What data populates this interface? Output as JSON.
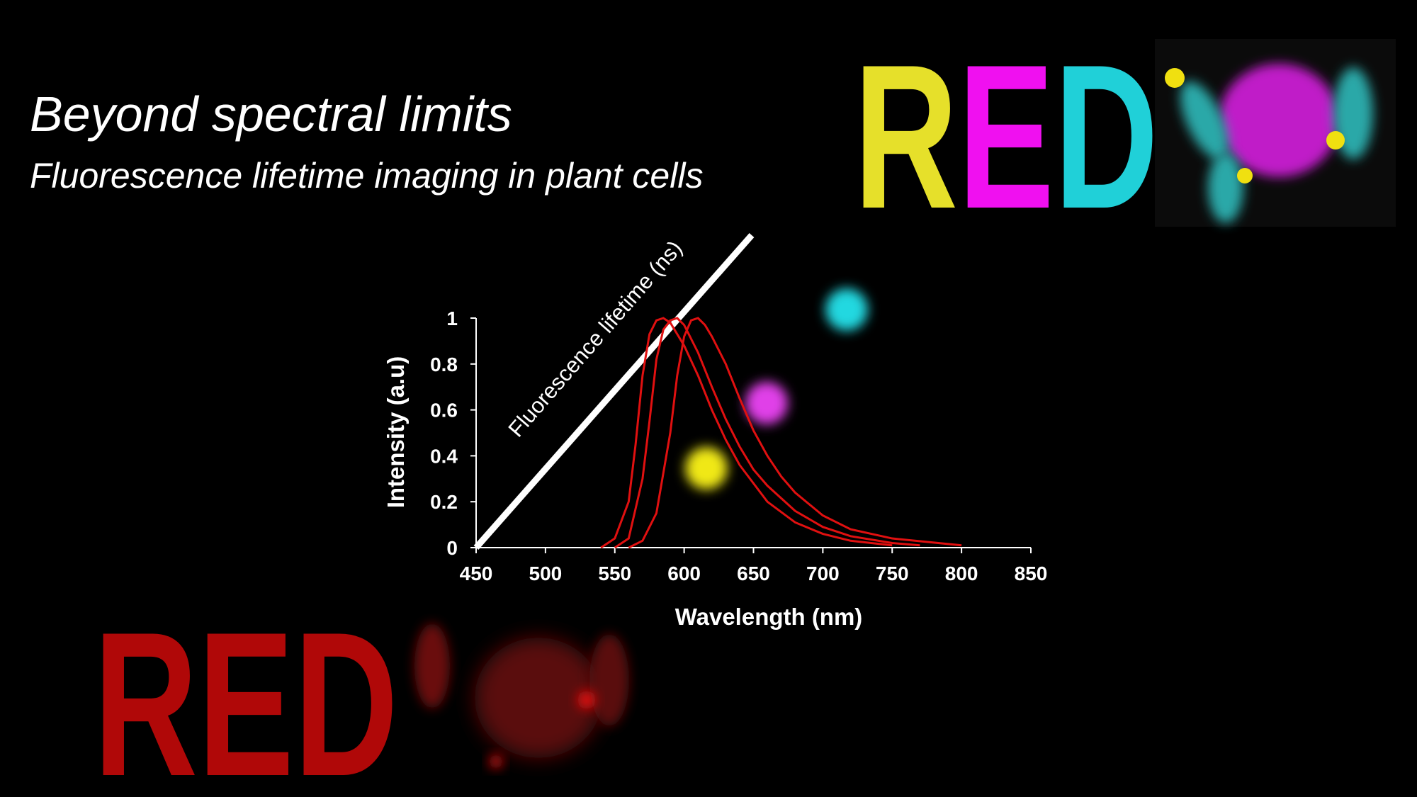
{
  "header": {
    "title": "Beyond spectral limits",
    "subtitle": "Fluorescence lifetime imaging in plant cells"
  },
  "logo_top": [
    "R",
    "E",
    "D"
  ],
  "logo_bottom": "RED",
  "chart_data": {
    "type": "line",
    "xlabel": "Wavelength (nm)",
    "ylabel": "Intensity (a.u)",
    "annotation": "Fluorescence lifetime (ns)",
    "xlim": [
      450,
      850
    ],
    "ylim": [
      0,
      1
    ],
    "xticks": [
      450,
      500,
      550,
      600,
      650,
      700,
      750,
      800,
      850
    ],
    "yticks": [
      0,
      0.2,
      0.4,
      0.6,
      0.8,
      1
    ],
    "grid": false,
    "series": [
      {
        "color": "#e01010",
        "x": [
          540,
          550,
          560,
          565,
          570,
          575,
          580,
          585,
          590,
          600,
          610,
          620,
          630,
          640,
          650,
          660,
          680,
          700,
          720,
          750
        ],
        "values": [
          0,
          0.04,
          0.2,
          0.45,
          0.75,
          0.93,
          0.99,
          1,
          0.98,
          0.88,
          0.75,
          0.6,
          0.47,
          0.36,
          0.28,
          0.2,
          0.11,
          0.06,
          0.03,
          0.01
        ]
      },
      {
        "color": "#e01010",
        "x": [
          550,
          560,
          570,
          575,
          580,
          585,
          590,
          595,
          600,
          610,
          620,
          630,
          640,
          650,
          660,
          680,
          700,
          720,
          750,
          770
        ],
        "values": [
          0,
          0.04,
          0.3,
          0.55,
          0.82,
          0.95,
          0.99,
          1,
          0.97,
          0.85,
          0.7,
          0.56,
          0.44,
          0.34,
          0.27,
          0.16,
          0.09,
          0.05,
          0.02,
          0.01
        ]
      },
      {
        "color": "#e01010",
        "x": [
          560,
          570,
          580,
          590,
          595,
          600,
          605,
          610,
          615,
          620,
          630,
          640,
          650,
          660,
          670,
          680,
          700,
          720,
          750,
          800
        ],
        "values": [
          0,
          0.03,
          0.15,
          0.5,
          0.75,
          0.92,
          0.99,
          1,
          0.97,
          0.92,
          0.8,
          0.65,
          0.51,
          0.4,
          0.31,
          0.24,
          0.14,
          0.08,
          0.04,
          0.01
        ]
      }
    ]
  }
}
